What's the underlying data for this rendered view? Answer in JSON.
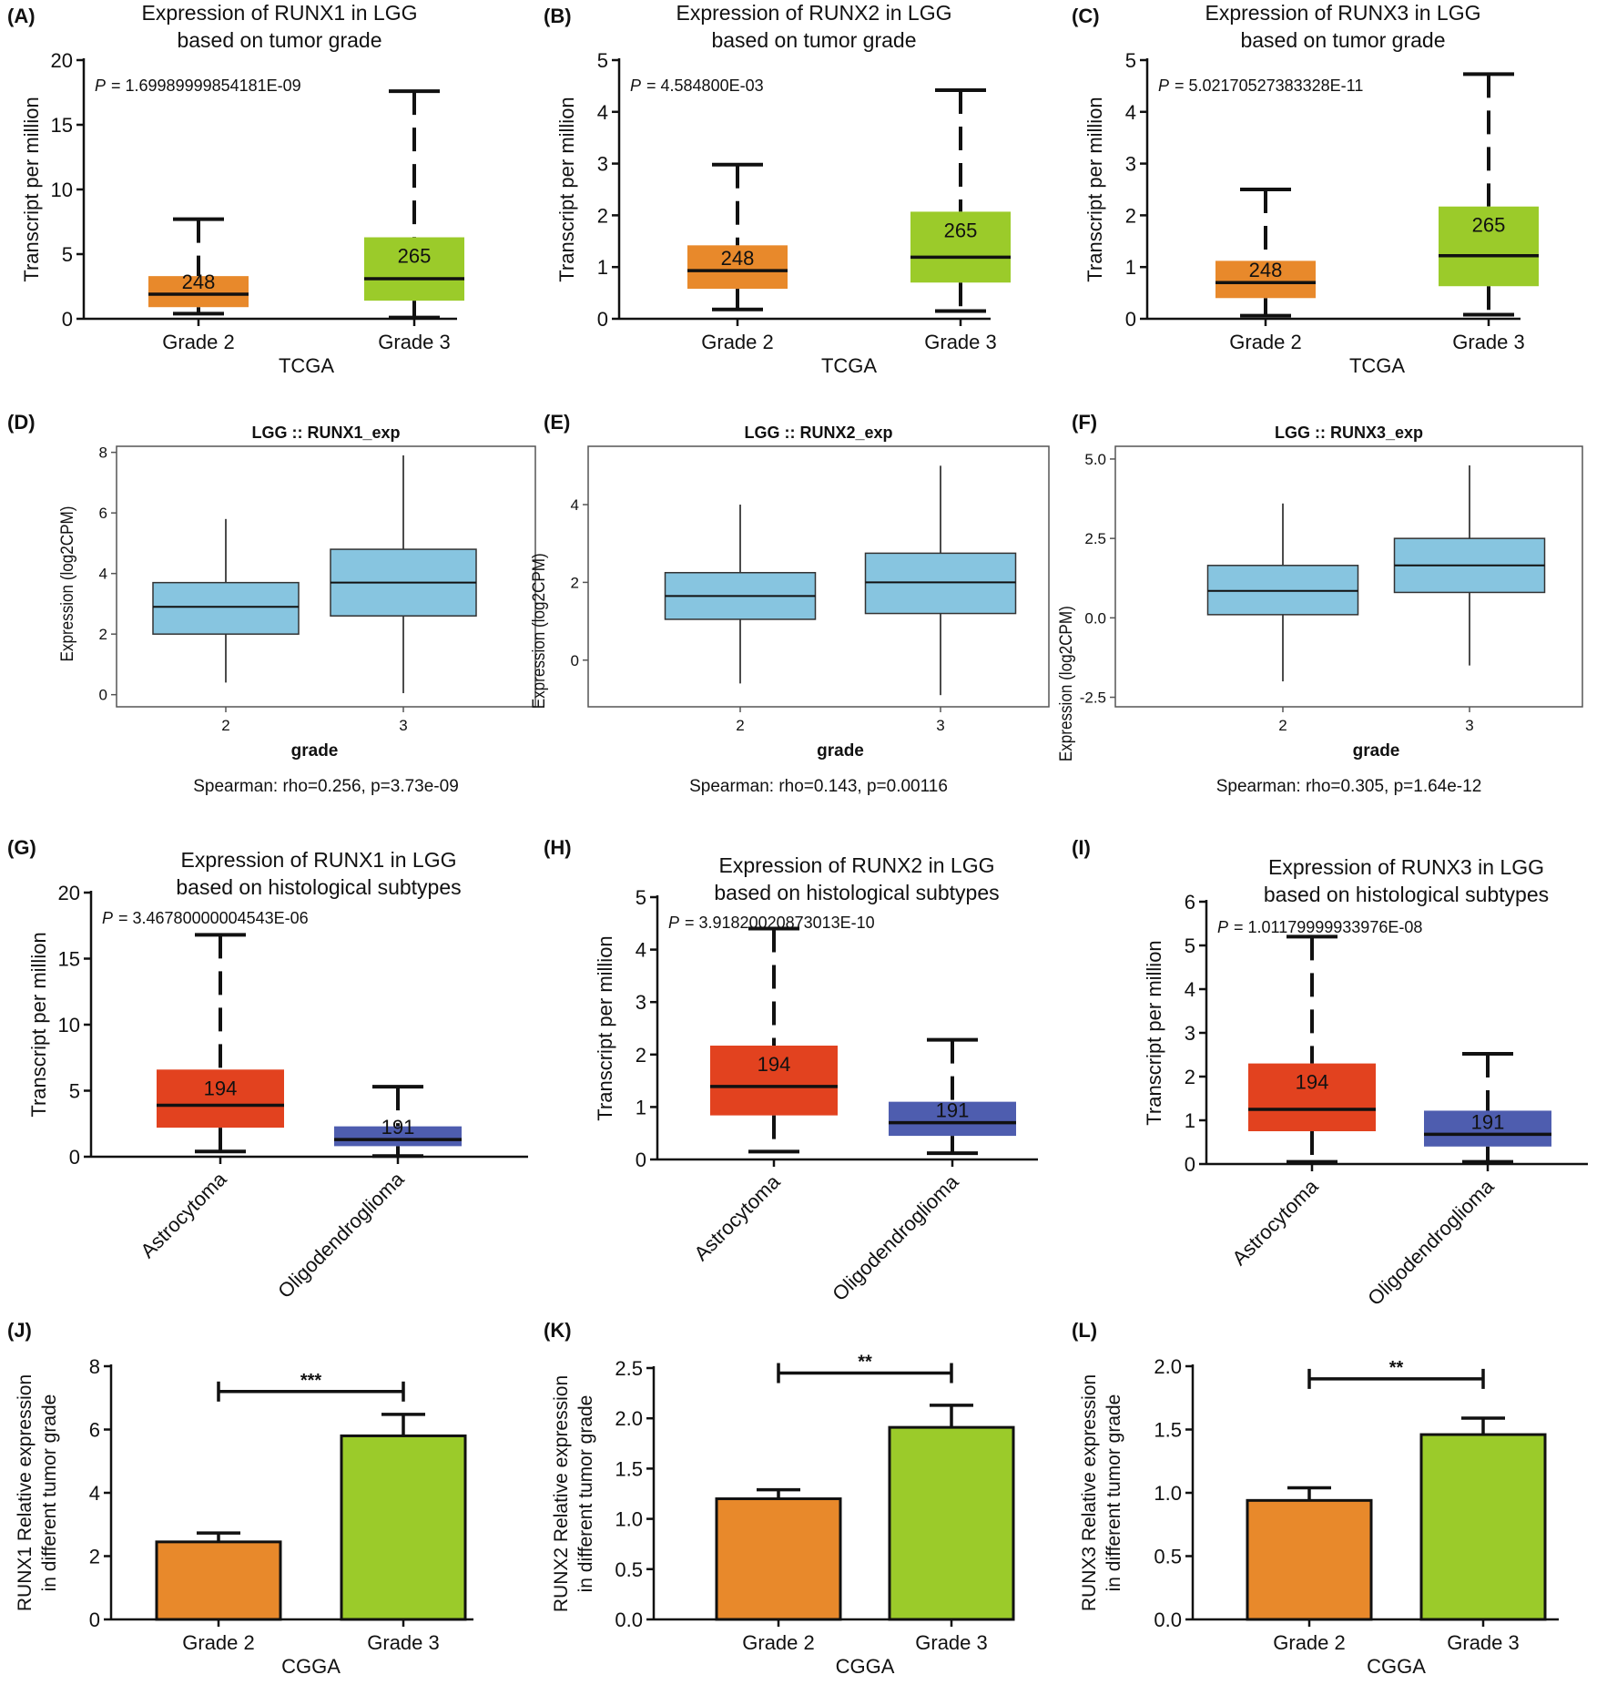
{
  "chart_data": [
    {
      "panel": "(A)",
      "type": "box",
      "title": [
        "Expression of RUNX1 in LGG",
        "based on tumor grade"
      ],
      "ylabel": "Transcript per million",
      "xlabel": "TCGA",
      "p_label": "P",
      "p_value": "= 1.69989999854181E-09",
      "ylim": [
        0,
        20
      ],
      "yticks": [
        "0",
        "5",
        "10",
        "15",
        "20"
      ],
      "yticks_values": [
        0,
        5,
        10,
        15,
        20
      ],
      "categories": [
        "Grade 2",
        "Grade 3"
      ],
      "boxes": [
        {
          "min": 0.4,
          "q1": 0.9,
          "median": 1.9,
          "q3": 3.3,
          "max": 7.7,
          "n": "248",
          "color": "#E8892B"
        },
        {
          "min": 0.1,
          "q1": 1.4,
          "median": 3.1,
          "q3": 6.3,
          "max": 17.6,
          "n": "265",
          "color": "#9BCB2A"
        }
      ]
    },
    {
      "panel": "(B)",
      "type": "box",
      "title": [
        "Expression of RUNX2 in LGG",
        "based on tumor grade"
      ],
      "ylabel": "Transcript per million",
      "xlabel": "TCGA",
      "p_label": "P",
      "p_value": "= 4.584800E-03",
      "ylim": [
        0,
        5
      ],
      "yticks": [
        "0",
        "1",
        "2",
        "3",
        "4",
        "5"
      ],
      "yticks_values": [
        0,
        1,
        2,
        3,
        4,
        5
      ],
      "categories": [
        "Grade 2",
        "Grade 3"
      ],
      "boxes": [
        {
          "min": 0.18,
          "q1": 0.58,
          "median": 0.93,
          "q3": 1.42,
          "max": 2.98,
          "n": "248",
          "color": "#E8892B"
        },
        {
          "min": 0.15,
          "q1": 0.7,
          "median": 1.19,
          "q3": 2.07,
          "max": 4.42,
          "n": "265",
          "color": "#9BCB2A"
        }
      ]
    },
    {
      "panel": "(C)",
      "type": "box",
      "title": [
        "Expression of RUNX3 in LGG",
        "based on tumor grade"
      ],
      "ylabel": "Transcript per million",
      "xlabel": "TCGA",
      "p_label": "P",
      "p_value": "= 5.02170527383328E-11",
      "ylim": [
        0,
        5
      ],
      "yticks": [
        "0",
        "1",
        "2",
        "3",
        "4",
        "5"
      ],
      "yticks_values": [
        0,
        1,
        2,
        3,
        4,
        5
      ],
      "categories": [
        "Grade 2",
        "Grade 3"
      ],
      "boxes": [
        {
          "min": 0.06,
          "q1": 0.4,
          "median": 0.7,
          "q3": 1.12,
          "max": 2.5,
          "n": "248",
          "color": "#E8892B"
        },
        {
          "min": 0.08,
          "q1": 0.63,
          "median": 1.22,
          "q3": 2.17,
          "max": 4.73,
          "n": "265",
          "color": "#9BCB2A"
        }
      ]
    },
    {
      "panel": "(D)",
      "type": "box",
      "title": [
        "LGG  ::  RUNX1_exp"
      ],
      "ylabel": "Expression (log2CPM)",
      "xlabel": "grade",
      "footer": "Spearman: rho=0.256, p=3.73e-09",
      "ylim": [
        -0.4,
        8.2
      ],
      "yticks": [
        "0",
        "2",
        "4",
        "6",
        "8"
      ],
      "yticks_values": [
        0,
        2,
        4,
        6,
        8
      ],
      "categories": [
        "2",
        "3"
      ],
      "boxes": [
        {
          "min": 0.4,
          "q1": 2.0,
          "median": 2.9,
          "q3": 3.7,
          "max": 5.8,
          "color": "#87C5E0"
        },
        {
          "min": 0.05,
          "q1": 2.6,
          "median": 3.7,
          "q3": 4.8,
          "max": 7.9,
          "color": "#87C5E0"
        }
      ]
    },
    {
      "panel": "(E)",
      "type": "box",
      "title": [
        "LGG  ::  RUNX2_exp"
      ],
      "ylabel": "Expression (log2CPM)",
      "xlabel": "grade",
      "footer": "Spearman: rho=0.143, p=0.00116",
      "ylim": [
        -1.2,
        5.5
      ],
      "yticks": [
        "0",
        "2",
        "4"
      ],
      "yticks_values": [
        0,
        2,
        4
      ],
      "categories": [
        "2",
        "3"
      ],
      "boxes": [
        {
          "min": -0.6,
          "q1": 1.05,
          "median": 1.65,
          "q3": 2.25,
          "max": 4.0,
          "color": "#87C5E0"
        },
        {
          "min": -0.9,
          "q1": 1.2,
          "median": 2.0,
          "q3": 2.75,
          "max": 5.0,
          "color": "#87C5E0"
        }
      ]
    },
    {
      "panel": "(F)",
      "type": "box",
      "title": [
        "LGG  ::  RUNX3_exp"
      ],
      "ylabel": "Expression (log2CPM)",
      "xlabel": "grade",
      "footer": "Spearman: rho=0.305, p=1.64e-12",
      "ylim": [
        -2.8,
        5.4
      ],
      "yticks": [
        "-2.5",
        "0.0",
        "2.5",
        "5.0"
      ],
      "yticks_values": [
        -2.5,
        0,
        2.5,
        5
      ],
      "categories": [
        "2",
        "3"
      ],
      "boxes": [
        {
          "min": -2.0,
          "q1": 0.1,
          "median": 0.85,
          "q3": 1.65,
          "max": 3.6,
          "color": "#87C5E0"
        },
        {
          "min": -1.5,
          "q1": 0.8,
          "median": 1.65,
          "q3": 2.5,
          "max": 4.8,
          "color": "#87C5E0"
        }
      ]
    },
    {
      "panel": "(G)",
      "type": "box",
      "title": [
        "Expression of RUNX1 in LGG",
        "based on histological subtypes"
      ],
      "ylabel": "Transcript per million",
      "xlabel": "",
      "p_label": "P",
      "p_value": "= 3.46780000004543E-06",
      "ylim": [
        0,
        20
      ],
      "yticks": [
        "0",
        "5",
        "10",
        "15",
        "20"
      ],
      "yticks_values": [
        0,
        5,
        10,
        15,
        20
      ],
      "categories": [
        "Astrocytoma",
        "Oligodendroglioma"
      ],
      "boxes": [
        {
          "min": 0.4,
          "q1": 2.2,
          "median": 3.9,
          "q3": 6.6,
          "max": 16.8,
          "n": "194",
          "color": "#E2421F"
        },
        {
          "min": 0.05,
          "q1": 0.8,
          "median": 1.3,
          "q3": 2.3,
          "max": 5.3,
          "n": "191",
          "color": "#4E5DAF"
        }
      ]
    },
    {
      "panel": "(H)",
      "type": "box",
      "title": [
        "Expression of RUNX2 in LGG",
        "based on histological subtypes"
      ],
      "ylabel": "Transcript per million",
      "xlabel": "",
      "p_label": "P",
      "p_value": "= 3.91820020873013E-10",
      "ylim": [
        0,
        5
      ],
      "yticks": [
        "0",
        "1",
        "2",
        "3",
        "4",
        "5"
      ],
      "yticks_values": [
        0,
        1,
        2,
        3,
        4,
        5
      ],
      "categories": [
        "Astrocytoma",
        "Oligodendroglioma"
      ],
      "boxes": [
        {
          "min": 0.15,
          "q1": 0.84,
          "median": 1.39,
          "q3": 2.17,
          "max": 4.4,
          "n": "194",
          "color": "#E2421F"
        },
        {
          "min": 0.12,
          "q1": 0.45,
          "median": 0.7,
          "q3": 1.1,
          "max": 2.28,
          "n": "191",
          "color": "#4E5DAF"
        }
      ]
    },
    {
      "panel": "(I)",
      "type": "box",
      "title": [
        "Expression of RUNX3 in LGG",
        "based on histological subtypes"
      ],
      "ylabel": "Transcript per million",
      "xlabel": "",
      "p_label": "P",
      "p_value": "= 1.01179999933976E-08",
      "ylim": [
        0,
        6
      ],
      "yticks": [
        "0",
        "1",
        "2",
        "3",
        "4",
        "5",
        "6"
      ],
      "yticks_values": [
        0,
        1,
        2,
        3,
        4,
        5,
        6
      ],
      "categories": [
        "Astrocytoma",
        "Oligodendroglioma"
      ],
      "boxes": [
        {
          "min": 0.05,
          "q1": 0.75,
          "median": 1.25,
          "q3": 2.3,
          "max": 5.2,
          "n": "194",
          "color": "#E2421F"
        },
        {
          "min": 0.05,
          "q1": 0.4,
          "median": 0.68,
          "q3": 1.22,
          "max": 2.52,
          "n": "191",
          "color": "#4E5DAF"
        }
      ]
    },
    {
      "panel": "(J)",
      "type": "bar",
      "ylabel": [
        "RUNX1 Relative expression",
        "in different tumor grade"
      ],
      "xlabel": "CGGA",
      "ylim": [
        0,
        8
      ],
      "yticks": [
        "0",
        "2",
        "4",
        "6",
        "8"
      ],
      "yticks_values": [
        0,
        2,
        4,
        6,
        8
      ],
      "categories": [
        "Grade 2",
        "Grade 3"
      ],
      "values": [
        2.45,
        5.8
      ],
      "errors": [
        0.28,
        0.68
      ],
      "colors": [
        "#E8892B",
        "#9BCB2A"
      ],
      "significance": "***",
      "sig_y": 7.2
    },
    {
      "panel": "(K)",
      "type": "bar",
      "ylabel": [
        "RUNX2 Relative expression",
        "in different tumor grade"
      ],
      "xlabel": "CGGA",
      "ylim": [
        0,
        2.5
      ],
      "yticks": [
        "0.0",
        "0.5",
        "1.0",
        "1.5",
        "2.0",
        "2.5"
      ],
      "yticks_values": [
        0,
        0.5,
        1.0,
        1.5,
        2.0,
        2.5
      ],
      "categories": [
        "Grade 2",
        "Grade 3"
      ],
      "values": [
        1.2,
        1.91
      ],
      "errors": [
        0.09,
        0.22
      ],
      "colors": [
        "#E8892B",
        "#9BCB2A"
      ],
      "significance": "**",
      "sig_y": 2.45
    },
    {
      "panel": "(L)",
      "type": "bar",
      "ylabel": [
        "RUNX3 Relative expression",
        "in different tumor grade"
      ],
      "xlabel": "CGGA",
      "ylim": [
        0,
        2.0
      ],
      "yticks": [
        "0.0",
        "0.5",
        "1.0",
        "1.5",
        "2.0"
      ],
      "yticks_values": [
        0,
        0.5,
        1.0,
        1.5,
        2.0
      ],
      "categories": [
        "Grade 2",
        "Grade 3"
      ],
      "values": [
        0.94,
        1.46
      ],
      "errors": [
        0.1,
        0.13
      ],
      "colors": [
        "#E8892B",
        "#9BCB2A"
      ],
      "significance": "**",
      "sig_y": 1.9
    }
  ]
}
